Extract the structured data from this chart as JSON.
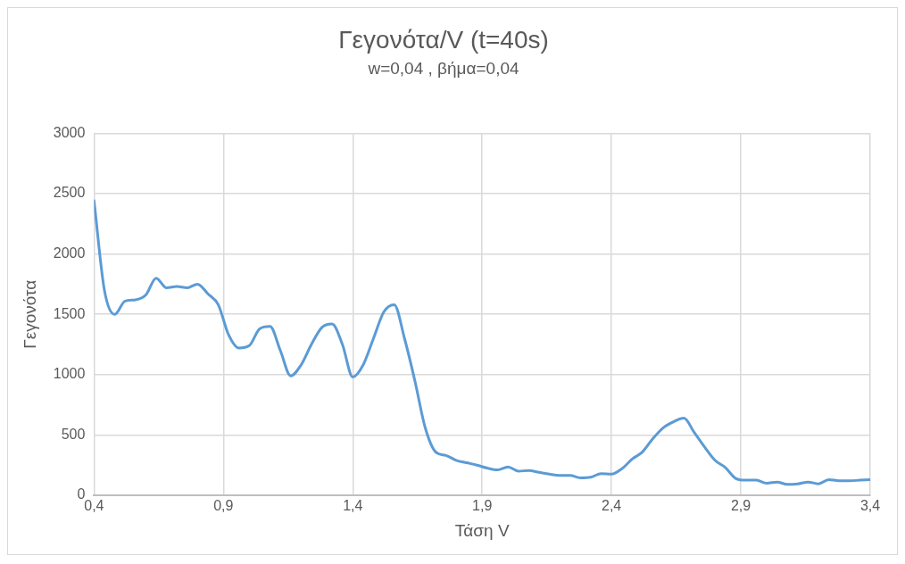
{
  "chart_data": {
    "type": "line",
    "title": "Γεγονότα/V (t=40s)",
    "subtitle": "w=0,04 , βήμα=0,04",
    "xlabel": "Τάση V",
    "ylabel": "Γεγονότα",
    "x": [
      0.4,
      0.44,
      0.48,
      0.52,
      0.56,
      0.6,
      0.64,
      0.68,
      0.72,
      0.76,
      0.8,
      0.84,
      0.88,
      0.92,
      0.96,
      1.0,
      1.04,
      1.08,
      1.12,
      1.16,
      1.2,
      1.24,
      1.28,
      1.32,
      1.36,
      1.4,
      1.44,
      1.48,
      1.52,
      1.56,
      1.6,
      1.64,
      1.68,
      1.72,
      1.76,
      1.8,
      1.84,
      1.88,
      1.92,
      1.96,
      2.0,
      2.04,
      2.08,
      2.12,
      2.16,
      2.2,
      2.24,
      2.28,
      2.32,
      2.36,
      2.4,
      2.44,
      2.48,
      2.52,
      2.56,
      2.6,
      2.64,
      2.68,
      2.72,
      2.76,
      2.8,
      2.84,
      2.88,
      2.92,
      2.96,
      3.0,
      3.04,
      3.08,
      3.12,
      3.16,
      3.2,
      3.24,
      3.28,
      3.32,
      3.36,
      3.4
    ],
    "series": [
      {
        "color": "#5b9bd5",
        "values": [
          2440,
          1700,
          1500,
          1610,
          1620,
          1660,
          1800,
          1720,
          1730,
          1720,
          1750,
          1670,
          1580,
          1330,
          1220,
          1240,
          1380,
          1400,
          1200,
          990,
          1080,
          1250,
          1390,
          1420,
          1250,
          980,
          1080,
          1300,
          1520,
          1580,
          1300,
          950,
          560,
          360,
          330,
          290,
          270,
          250,
          225,
          210,
          235,
          200,
          205,
          190,
          175,
          165,
          165,
          145,
          150,
          180,
          175,
          220,
          300,
          360,
          470,
          560,
          610,
          640,
          520,
          400,
          290,
          230,
          140,
          125,
          125,
          100,
          110,
          90,
          95,
          110,
          95,
          130,
          120,
          120,
          125,
          130
        ]
      }
    ],
    "xlim": [
      0.4,
      3.4
    ],
    "xticks": [
      {
        "value": 0.4,
        "label": "0,4"
      },
      {
        "value": 0.9,
        "label": "0,9"
      },
      {
        "value": 1.4,
        "label": "1,4"
      },
      {
        "value": 1.9,
        "label": "1,9"
      },
      {
        "value": 2.4,
        "label": "2,4"
      },
      {
        "value": 2.9,
        "label": "2,9"
      },
      {
        "value": 3.4,
        "label": "3,4"
      }
    ],
    "ylim": [
      0,
      3000
    ],
    "yticks": [
      0,
      500,
      1000,
      1500,
      2000,
      2500,
      3000
    ],
    "grid": true,
    "legend": false,
    "marker": "none",
    "line_style": "solid"
  }
}
